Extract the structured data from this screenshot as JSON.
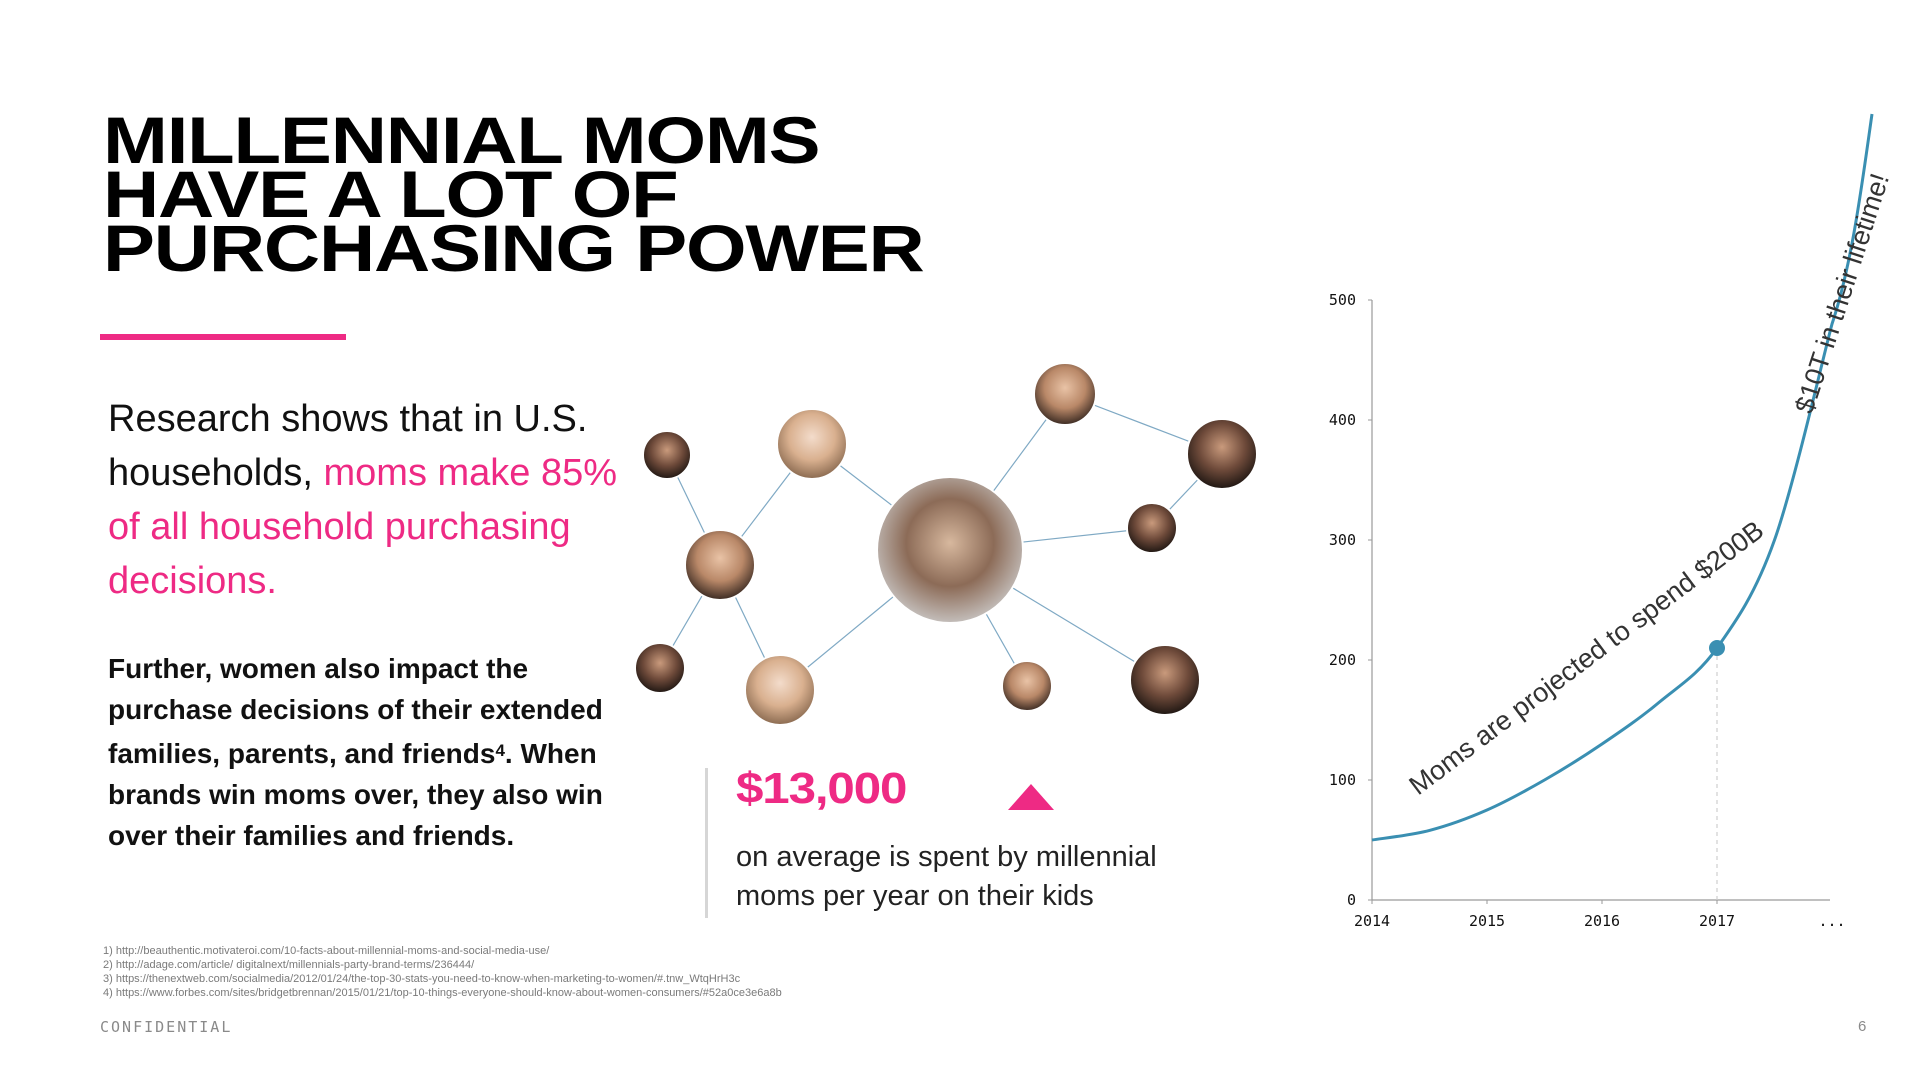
{
  "slide": {
    "title_lines": [
      "MILLENNIAL MOMS",
      "HAVE A LOT OF",
      "PURCHASING POWER"
    ],
    "lead": {
      "plain": "Research shows that in U.S. households,",
      "highlight": "moms make 85% of all household purchasing decisions."
    },
    "body": {
      "part1": "Further, women also impact the purchase decisions of their extended families, parents, and friends",
      "sup": "4",
      "part2": ". When brands win moms over, they also win over their families and friends."
    },
    "stat": {
      "value": "$13,000",
      "trend_icon": "triangle-up-icon",
      "caption": "on average is spent by millennial moms per year on their kids"
    },
    "footnotes": [
      "1)   http://beauthentic.motivateroi.com/10-facts-about-millennial-moms-and-social-media-use/",
      "2)   http://adage.com/article/ digitalnext/millennials-party-brand-terms/236444/",
      "3)   https://thenextweb.com/socialmedia/2012/01/24/the-top-30-stats-you-need-to-know-when-marketing-to-women/#.tnw_WtqHrH3c",
      "4)   https://www.forbes.com/sites/bridgetbrennan/2015/01/21/top-10-things-everyone-should-know-about-women-consumers/#52a0ce3e6a8b"
    ],
    "confidential": "CONFIDENTIAL",
    "page_number": "6",
    "network_icon": "influence-network-icon",
    "colors": {
      "accent": "#ee2a84",
      "curve": "#3a8fb2",
      "text": "#111111"
    }
  },
  "chart_data": {
    "type": "line",
    "x_tick_labels": [
      "2014",
      "2015",
      "2016",
      "2017",
      "..."
    ],
    "y_tick_labels": [
      "0",
      "100",
      "200",
      "300",
      "400",
      "500"
    ],
    "x": [
      2014,
      2015,
      2016,
      2017
    ],
    "ylim": [
      0,
      500
    ],
    "series": [
      {
        "x": [
          2014,
          2014.5,
          2015,
          2015.5,
          2016,
          2016.5,
          2017,
          2017.5,
          2018
        ],
        "values": [
          50,
          58,
          75,
          100,
          130,
          165,
          210,
          300,
          480
        ]
      }
    ],
    "highlight_point": {
      "x": 2017,
      "y": 210
    },
    "annotations": [
      "Moms are projected to spend $200B",
      "$10T in their lifetime!"
    ],
    "grid": false
  }
}
